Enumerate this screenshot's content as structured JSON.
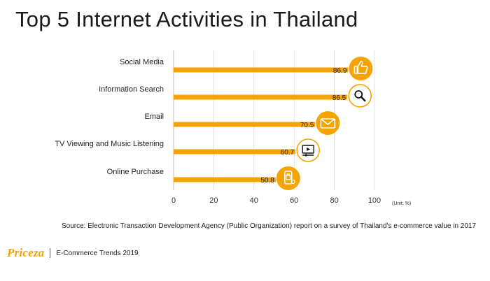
{
  "chart_data": {
    "type": "bar",
    "orientation": "horizontal",
    "title": "Top 5 Internet Activities in Thailand",
    "categories": [
      "Social Media",
      "Information Search",
      "Email",
      "TV Viewing and Music Listening",
      "Online Purchase"
    ],
    "values": [
      86.9,
      86.5,
      70.5,
      60.7,
      50.8
    ],
    "value_labels": [
      "86.9",
      "86.5",
      "70.5",
      "60.7",
      "50.8"
    ],
    "icons": [
      "thumbs-up-icon",
      "search-icon",
      "envelope-icon",
      "video-player-icon",
      "shopping-bag-icon"
    ],
    "xticks": [
      "0",
      "20",
      "40",
      "60",
      "80",
      "100"
    ],
    "xlim": [
      0,
      100
    ],
    "unit_label": "(Unit: %)",
    "grid": true,
    "bar_color": "#f5a300",
    "icon_fill_color": "#f5a300"
  },
  "source_text": "Source: Electronic Transaction Development Agency (Public Organization) report on a survey of Thailand's e-commerce value in 2017",
  "footer": {
    "brand": "Priceza",
    "text": "E-Commerce Trends 2019"
  }
}
